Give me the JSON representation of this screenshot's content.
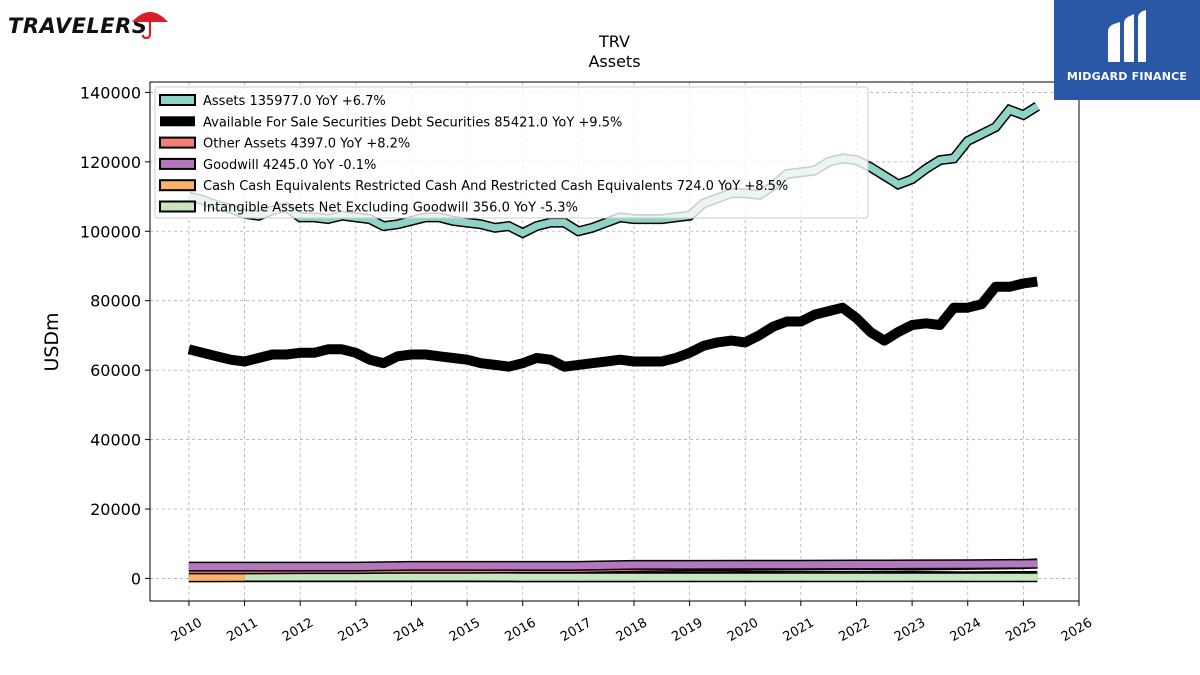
{
  "logos": {
    "left_brand": "TRAVELERS",
    "right_brand": "MIDGARD FINANCE"
  },
  "colors": {
    "assets": "#8fd3c6",
    "afs": "#000000",
    "other": "#f08073",
    "goodwill": "#b277bc",
    "cash": "#fbb266",
    "intangible": "#c7e6c0",
    "badge_bg": "#2b58a6",
    "umbrella": "#d62027"
  },
  "chart_data": {
    "type": "line",
    "title": "TRV",
    "subtitle": "Assets",
    "xlabel": "",
    "ylabel": "USDm",
    "xlim": [
      2009.3,
      2026.0
    ],
    "ylim": [
      -6500,
      143000
    ],
    "yticks": [
      0,
      20000,
      40000,
      60000,
      80000,
      100000,
      120000,
      140000
    ],
    "xticks": [
      "2010",
      "2011",
      "2012",
      "2013",
      "2014",
      "2015",
      "2016",
      "2017",
      "2018",
      "2019",
      "2020",
      "2021",
      "2022",
      "2023",
      "2024",
      "2025",
      "2026"
    ],
    "grid": true,
    "legend_position": "top-left",
    "series": [
      {
        "name": "Assets  135977.0 YoY +6.7%",
        "key": "assets",
        "x": [
          2010.0,
          2010.25,
          2010.5,
          2010.75,
          2011.0,
          2011.25,
          2011.5,
          2011.75,
          2012.0,
          2012.25,
          2012.5,
          2012.75,
          2013.0,
          2013.25,
          2013.5,
          2013.75,
          2014.0,
          2014.25,
          2014.5,
          2014.75,
          2015.0,
          2015.25,
          2015.5,
          2015.75,
          2016.0,
          2016.25,
          2016.5,
          2016.75,
          2017.0,
          2017.25,
          2017.5,
          2017.75,
          2018.0,
          2018.25,
          2018.5,
          2018.75,
          2019.0,
          2019.25,
          2019.5,
          2019.75,
          2020.0,
          2020.25,
          2020.5,
          2020.75,
          2021.0,
          2021.25,
          2021.5,
          2021.75,
          2022.0,
          2022.25,
          2022.5,
          2022.75,
          2023.0,
          2023.25,
          2023.5,
          2023.75,
          2024.0,
          2024.25,
          2024.5,
          2024.75,
          2025.0,
          2025.25
        ],
        "values": [
          110000,
          109000,
          107500,
          106500,
          105000,
          104500,
          106000,
          107000,
          104000,
          104000,
          103500,
          104500,
          104000,
          103500,
          101500,
          102000,
          103000,
          104000,
          104000,
          103000,
          102500,
          102000,
          101000,
          101500,
          99500,
          101500,
          102500,
          102500,
          100000,
          101000,
          102500,
          104000,
          103500,
          103500,
          103500,
          104000,
          104500,
          108000,
          109500,
          111000,
          111000,
          110500,
          113000,
          116500,
          117000,
          117500,
          120000,
          121000,
          120500,
          118500,
          116000,
          113500,
          115000,
          118000,
          120500,
          121000,
          126000,
          128000,
          130000,
          135000,
          133500,
          136000
        ]
      },
      {
        "name": "Available For Sale Securities Debt Securities  85421.0 YoY +9.5%",
        "key": "afs",
        "x": [
          2010.0,
          2010.25,
          2010.5,
          2010.75,
          2011.0,
          2011.25,
          2011.5,
          2011.75,
          2012.0,
          2012.25,
          2012.5,
          2012.75,
          2013.0,
          2013.25,
          2013.5,
          2013.75,
          2014.0,
          2014.25,
          2014.5,
          2014.75,
          2015.0,
          2015.25,
          2015.5,
          2015.75,
          2016.0,
          2016.25,
          2016.5,
          2016.75,
          2017.0,
          2017.25,
          2017.5,
          2017.75,
          2018.0,
          2018.25,
          2018.5,
          2018.75,
          2019.0,
          2019.25,
          2019.5,
          2019.75,
          2020.0,
          2020.25,
          2020.5,
          2020.75,
          2021.0,
          2021.25,
          2021.5,
          2021.75,
          2022.0,
          2022.25,
          2022.5,
          2022.75,
          2023.0,
          2023.25,
          2023.5,
          2023.75,
          2024.0,
          2024.25,
          2024.5,
          2024.75,
          2025.0,
          2025.25
        ],
        "values": [
          66000,
          65000,
          64000,
          63000,
          62500,
          63500,
          64500,
          64500,
          65000,
          65000,
          66000,
          66000,
          65000,
          63000,
          62000,
          64000,
          64500,
          64500,
          64000,
          63500,
          63000,
          62000,
          61500,
          61000,
          62000,
          63500,
          63000,
          61000,
          61500,
          62000,
          62500,
          63000,
          62500,
          62500,
          62500,
          63500,
          65000,
          67000,
          68000,
          68500,
          68000,
          70000,
          72500,
          74000,
          74000,
          76000,
          77000,
          78000,
          75000,
          71000,
          68500,
          71000,
          73000,
          73500,
          73000,
          78000,
          78000,
          79000,
          84000,
          84000,
          85000,
          85500
        ]
      },
      {
        "name": "Other Assets  4397.0 YoY +8.2%",
        "key": "other",
        "x": [
          2010.0,
          2011.0,
          2012.0,
          2013.0,
          2014.0,
          2015.0,
          2016.0,
          2017.0,
          2018.0,
          2019.0,
          2020.0,
          2021.0,
          2022.0,
          2023.0,
          2024.0,
          2025.0,
          2025.25
        ],
        "values": [
          2600,
          2600,
          2700,
          2700,
          2800,
          2800,
          2900,
          2900,
          3200,
          3500,
          3600,
          3800,
          3900,
          3700,
          3900,
          4100,
          4397
        ]
      },
      {
        "name": "Goodwill  4245.0 YoY -0.1%",
        "key": "goodwill",
        "x": [
          2010.0,
          2011.0,
          2012.0,
          2013.0,
          2014.0,
          2015.0,
          2016.0,
          2017.0,
          2018.0,
          2019.0,
          2020.0,
          2021.0,
          2022.0,
          2023.0,
          2024.0,
          2025.0,
          2025.25
        ],
        "values": [
          3400,
          3400,
          3400,
          3400,
          3600,
          3600,
          3600,
          3600,
          3900,
          3900,
          3950,
          3950,
          4000,
          4050,
          4100,
          4200,
          4245
        ]
      },
      {
        "name": "Cash Cash Equivalents Restricted Cash And Restricted Cash Equivalents  724.0 YoY +8.5%",
        "key": "cash",
        "x": [
          2010.0,
          2011.0,
          2012.0,
          2013.0,
          2014.0,
          2015.0,
          2016.0,
          2017.0,
          2018.0,
          2019.0,
          2020.0,
          2021.0,
          2022.0,
          2023.0,
          2024.0,
          2025.0,
          2025.25
        ],
        "values": [
          300,
          350,
          350,
          350,
          350,
          350,
          350,
          350,
          350,
          600,
          700,
          750,
          800,
          700,
          650,
          700,
          724
        ]
      },
      {
        "name": "Intangible Assets Net Excluding Goodwill  356.0 YoY -5.3%",
        "key": "intangible",
        "x": [
          2011.0,
          2012.0,
          2013.0,
          2014.0,
          2015.0,
          2016.0,
          2017.0,
          2018.0,
          2019.0,
          2020.0,
          2021.0,
          2022.0,
          2023.0,
          2024.0,
          2025.0,
          2025.25
        ],
        "values": [
          400,
          400,
          400,
          400,
          400,
          350,
          350,
          320,
          320,
          320,
          320,
          330,
          340,
          350,
          370,
          356
        ]
      }
    ]
  }
}
